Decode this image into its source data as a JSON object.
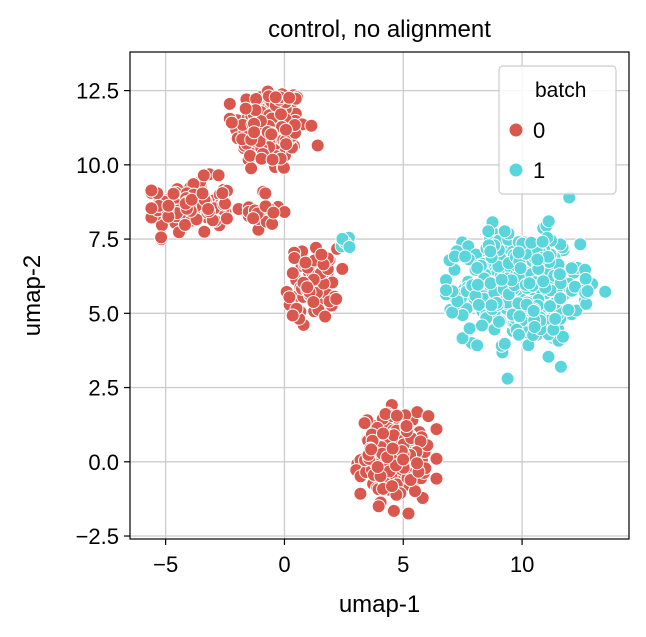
{
  "chart_data": {
    "type": "scatter",
    "title": "control, no alignment",
    "xlabel": "umap-1",
    "ylabel": "umap-2",
    "xlim": [
      -6.5,
      14.5
    ],
    "ylim": [
      -2.6,
      13.8
    ],
    "xticks": [
      -5,
      0,
      5,
      10
    ],
    "xtick_labels": [
      "−5",
      "0",
      "5",
      "10"
    ],
    "yticks": [
      -2.5,
      0.0,
      2.5,
      5.0,
      7.5,
      10.0,
      12.5
    ],
    "ytick_labels": [
      "−2.5",
      "0.0",
      "2.5",
      "5.0",
      "7.5",
      "10.0",
      "12.5"
    ],
    "grid": true,
    "legend": {
      "title": "batch",
      "position": "top-right"
    },
    "series": [
      {
        "name": "0",
        "color": "#d9574c",
        "clusters": [
          {
            "center": [
              -0.6,
              11.2
            ],
            "spread": [
              1.0,
              1.0
            ],
            "n": 170,
            "range_x": [
              -2.3,
              1.4
            ],
            "range_y": [
              9.3,
              13.0
            ]
          },
          {
            "center": [
              -3.9,
              8.6
            ],
            "spread": [
              1.1,
              0.6
            ],
            "n": 110,
            "range_x": [
              -5.6,
              -1.6
            ],
            "range_y": [
              7.5,
              10.0
            ]
          },
          {
            "center": [
              -0.8,
              8.4
            ],
            "spread": [
              0.6,
              0.5
            ],
            "n": 20,
            "range_x": [
              -1.5,
              0.0
            ],
            "range_y": [
              7.5,
              9.6
            ]
          },
          {
            "center": [
              1.2,
              6.0
            ],
            "spread": [
              0.7,
              0.8
            ],
            "n": 80,
            "range_x": [
              -0.3,
              2.5
            ],
            "range_y": [
              4.5,
              7.6
            ]
          },
          {
            "center": [
              4.6,
              0.2
            ],
            "spread": [
              0.9,
              0.9
            ],
            "n": 220,
            "range_x": [
              1.9,
              6.4
            ],
            "range_y": [
              -1.8,
              2.7
            ]
          }
        ]
      },
      {
        "name": "1",
        "color": "#5bd5dc",
        "clusters": [
          {
            "center": [
              10.0,
              5.9
            ],
            "spread": [
              1.6,
              1.2
            ],
            "n": 520,
            "range_x": [
              6.8,
              13.6
            ],
            "range_y": [
              2.8,
              8.9
            ]
          },
          {
            "center": [
              2.6,
              7.4
            ],
            "spread": [
              0.15,
              0.2
            ],
            "n": 5,
            "range_x": [
              2.3,
              2.9
            ],
            "range_y": [
              6.9,
              7.8
            ]
          }
        ]
      }
    ]
  }
}
